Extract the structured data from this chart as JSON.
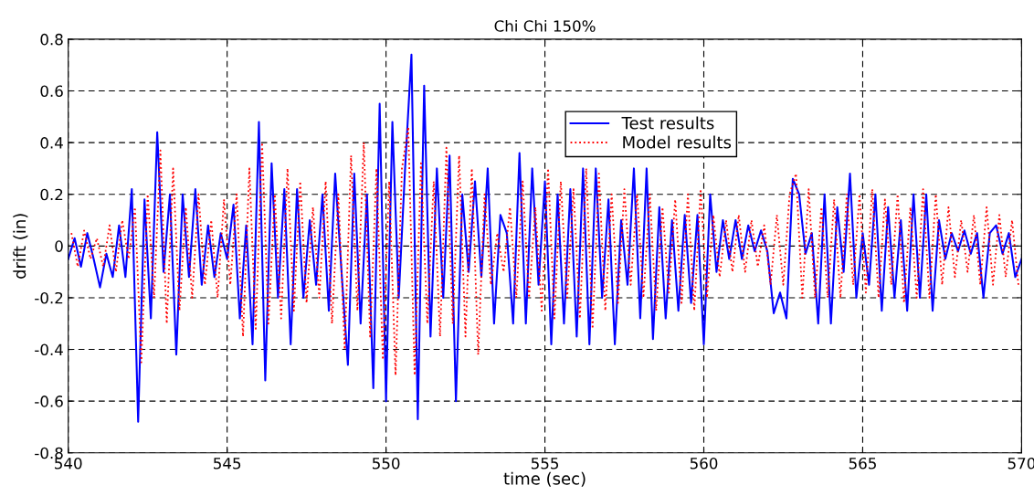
{
  "chart_data": {
    "type": "line",
    "title": "Chi Chi 150%",
    "xlabel": "time (sec)",
    "ylabel": "drift (in)",
    "xlim": [
      540,
      570
    ],
    "ylim": [
      -0.8,
      0.8
    ],
    "xticks": [
      540,
      545,
      550,
      555,
      560,
      565,
      570
    ],
    "yticks": [
      -0.8,
      -0.6,
      -0.4,
      -0.2,
      0,
      0.2,
      0.4,
      0.6,
      0.8
    ],
    "grid": true,
    "legend": "top",
    "marker": "none",
    "series": [
      {
        "name": "Test results",
        "color": "#0000ff",
        "line_style": "solid",
        "x": [
          540.0,
          540.2,
          540.4,
          540.6,
          540.8,
          541.0,
          541.2,
          541.4,
          541.6,
          541.8,
          542.0,
          542.2,
          542.4,
          542.6,
          542.8,
          543.0,
          543.2,
          543.4,
          543.6,
          543.8,
          544.0,
          544.2,
          544.4,
          544.6,
          544.8,
          545.0,
          545.2,
          545.4,
          545.6,
          545.8,
          546.0,
          546.2,
          546.4,
          546.6,
          546.8,
          547.0,
          547.2,
          547.4,
          547.6,
          547.8,
          548.0,
          548.2,
          548.4,
          548.6,
          548.8,
          549.0,
          549.2,
          549.4,
          549.6,
          549.8,
          550.0,
          550.2,
          550.4,
          550.6,
          550.8,
          551.0,
          551.2,
          551.4,
          551.6,
          551.8,
          552.0,
          552.2,
          552.4,
          552.6,
          552.8,
          553.0,
          553.2,
          553.4,
          553.6,
          553.8,
          554.0,
          554.2,
          554.4,
          554.6,
          554.8,
          555.0,
          555.2,
          555.4,
          555.6,
          555.8,
          556.0,
          556.2,
          556.4,
          556.6,
          556.8,
          557.0,
          557.2,
          557.4,
          557.6,
          557.8,
          558.0,
          558.2,
          558.4,
          558.6,
          558.8,
          559.0,
          559.2,
          559.4,
          559.6,
          559.8,
          560.0,
          560.2,
          560.4,
          560.6,
          560.8,
          561.0,
          561.2,
          561.4,
          561.6,
          561.8,
          562.0,
          562.2,
          562.4,
          562.6,
          562.8,
          563.0,
          563.2,
          563.4,
          563.6,
          563.8,
          564.0,
          564.2,
          564.4,
          564.6,
          564.8,
          565.0,
          565.2,
          565.4,
          565.6,
          565.8,
          566.0,
          566.2,
          566.4,
          566.6,
          566.8,
          567.0,
          567.2,
          567.4,
          567.6,
          567.8,
          568.0,
          568.2,
          568.4,
          568.6,
          568.8,
          569.0,
          569.2,
          569.4,
          569.6,
          569.8,
          570.0
        ],
        "values": [
          -0.05,
          0.03,
          -0.08,
          0.05,
          -0.05,
          -0.16,
          -0.03,
          -0.12,
          0.08,
          -0.12,
          0.22,
          -0.68,
          0.18,
          -0.28,
          0.44,
          -0.1,
          0.2,
          -0.42,
          0.2,
          -0.12,
          0.22,
          -0.15,
          0.08,
          -0.12,
          0.05,
          -0.05,
          0.16,
          -0.28,
          0.08,
          -0.38,
          0.48,
          -0.52,
          0.32,
          -0.2,
          0.22,
          -0.38,
          0.22,
          -0.2,
          0.1,
          -0.15,
          0.2,
          -0.25,
          0.28,
          -0.1,
          -0.46,
          0.28,
          -0.3,
          0.2,
          -0.55,
          0.55,
          -0.6,
          0.48,
          -0.2,
          0.3,
          0.74,
          -0.67,
          0.62,
          -0.35,
          0.3,
          -0.2,
          0.35,
          -0.6,
          0.2,
          -0.1,
          0.25,
          -0.12,
          0.3,
          -0.3,
          0.12,
          0.05,
          -0.3,
          0.36,
          -0.3,
          0.3,
          -0.15,
          0.25,
          -0.38,
          0.2,
          -0.3,
          0.22,
          -0.35,
          0.3,
          -0.38,
          0.3,
          -0.2,
          0.18,
          -0.38,
          0.1,
          -0.15,
          0.3,
          -0.28,
          0.3,
          -0.36,
          0.15,
          -0.28,
          0.1,
          -0.25,
          0.12,
          -0.22,
          0.12,
          -0.38,
          0.2,
          -0.1,
          0.1,
          -0.05,
          0.1,
          -0.05,
          0.08,
          -0.02,
          0.06,
          -0.02,
          -0.26,
          -0.18,
          -0.28,
          0.26,
          0.2,
          -0.03,
          0.05,
          -0.3,
          0.2,
          -0.3,
          0.15,
          -0.1,
          0.28,
          -0.2,
          0.05,
          -0.15,
          0.2,
          -0.25,
          0.15,
          -0.2,
          0.1,
          -0.25,
          0.2,
          -0.2,
          0.2,
          -0.25,
          0.1,
          -0.05,
          0.05,
          -0.02,
          0.06,
          -0.03,
          0.05,
          -0.2,
          0.05,
          0.08,
          -0.03,
          0.05,
          -0.12,
          -0.05
        ]
      },
      {
        "name": "Model results",
        "color": "#ff0000",
        "line_style": "dotted",
        "x": [
          540.1,
          540.3,
          540.5,
          540.7,
          540.9,
          541.1,
          541.3,
          541.5,
          541.7,
          541.9,
          542.1,
          542.3,
          542.5,
          542.7,
          542.9,
          543.1,
          543.3,
          543.5,
          543.7,
          543.9,
          544.1,
          544.3,
          544.5,
          544.7,
          544.9,
          545.1,
          545.3,
          545.5,
          545.7,
          545.9,
          546.1,
          546.3,
          546.5,
          546.7,
          546.9,
          547.1,
          547.3,
          547.5,
          547.7,
          547.9,
          548.1,
          548.3,
          548.5,
          548.7,
          548.9,
          549.1,
          549.3,
          549.5,
          549.7,
          549.9,
          550.1,
          550.3,
          550.5,
          550.7,
          550.9,
          551.1,
          551.3,
          551.5,
          551.7,
          551.9,
          552.1,
          552.3,
          552.5,
          552.7,
          552.9,
          553.1,
          553.3,
          553.5,
          553.7,
          553.9,
          554.1,
          554.3,
          554.5,
          554.7,
          554.9,
          555.1,
          555.3,
          555.5,
          555.7,
          555.9,
          556.1,
          556.3,
          556.5,
          556.7,
          556.9,
          557.1,
          557.3,
          557.5,
          557.7,
          557.9,
          558.1,
          558.3,
          558.5,
          558.7,
          558.9,
          559.1,
          559.3,
          559.5,
          559.7,
          559.9,
          560.1,
          560.3,
          560.5,
          560.7,
          560.9,
          561.1,
          561.3,
          561.5,
          561.7,
          561.9,
          562.1,
          562.3,
          562.5,
          562.7,
          562.9,
          563.1,
          563.3,
          563.5,
          563.7,
          563.9,
          564.1,
          564.3,
          564.5,
          564.7,
          564.9,
          565.1,
          565.3,
          565.5,
          565.7,
          565.9,
          566.1,
          566.3,
          566.5,
          566.7,
          566.9,
          567.1,
          567.3,
          567.5,
          567.7,
          567.9,
          568.1,
          568.3,
          568.5,
          568.7,
          568.9,
          569.1,
          569.3,
          569.5,
          569.7,
          569.9
        ],
        "values": [
          0.05,
          -0.08,
          0.06,
          -0.05,
          0.03,
          -0.08,
          0.08,
          -0.1,
          0.1,
          -0.05,
          0.15,
          -0.45,
          0.2,
          -0.2,
          0.37,
          -0.3,
          0.3,
          -0.25,
          0.15,
          -0.2,
          0.2,
          -0.15,
          0.1,
          -0.2,
          0.18,
          -0.15,
          0.2,
          -0.35,
          0.3,
          -0.32,
          0.4,
          -0.3,
          0.2,
          -0.28,
          0.3,
          -0.25,
          0.25,
          -0.22,
          0.15,
          -0.2,
          0.25,
          -0.3,
          0.2,
          -0.4,
          0.35,
          -0.25,
          0.4,
          -0.35,
          0.3,
          -0.44,
          0.25,
          -0.5,
          0.3,
          0.46,
          -0.5,
          0.32,
          -0.3,
          0.25,
          -0.35,
          0.38,
          -0.3,
          0.35,
          -0.35,
          0.3,
          -0.42,
          0.2,
          -0.15,
          0.05,
          -0.1,
          0.15,
          -0.2,
          0.25,
          -0.2,
          0.15,
          -0.25,
          0.3,
          -0.28,
          0.25,
          -0.2,
          0.22,
          -0.28,
          0.3,
          -0.32,
          0.28,
          -0.25,
          0.2,
          -0.22,
          0.22,
          -0.15,
          0.2,
          -0.2,
          0.2,
          -0.25,
          0.15,
          -0.18,
          0.18,
          -0.22,
          0.2,
          -0.25,
          0.22,
          -0.2,
          0.12,
          -0.12,
          0.1,
          -0.1,
          0.12,
          -0.1,
          0.1,
          -0.08,
          0.08,
          -0.15,
          0.12,
          -0.15,
          0.2,
          0.28,
          -0.2,
          0.22,
          -0.2,
          0.15,
          -0.2,
          0.18,
          -0.2,
          0.2,
          -0.15,
          0.2,
          -0.18,
          0.22,
          -0.2,
          0.18,
          -0.15,
          0.2,
          -0.22,
          0.15,
          -0.2,
          0.22,
          -0.2,
          0.2,
          -0.15,
          0.15,
          -0.12,
          0.1,
          -0.1,
          0.12,
          -0.15,
          0.15,
          -0.15,
          0.12,
          -0.12,
          0.1,
          -0.15
        ]
      }
    ]
  }
}
